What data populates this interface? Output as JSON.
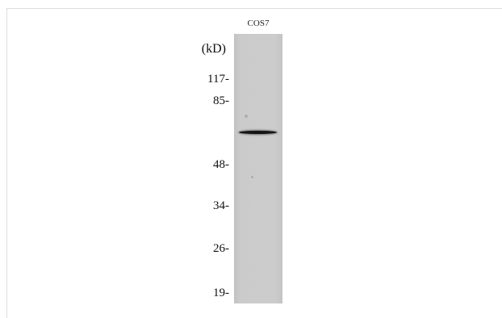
{
  "lane_label": "COS7",
  "unit_label": "(kD)",
  "markers": [
    "117-",
    "85-",
    "48-",
    "34-",
    "26-",
    "19-"
  ],
  "band": {
    "lane": "COS7",
    "color": "#141414"
  },
  "colors": {
    "lane_background": "#cccccc",
    "background": "#ffffff",
    "text": "#111111"
  }
}
